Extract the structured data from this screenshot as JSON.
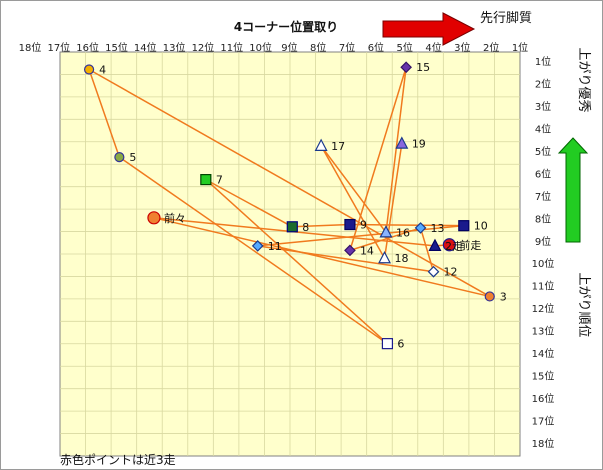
{
  "chart_data": {
    "type": "scatter",
    "title": "4コーナー位置取り",
    "x_ticks": [
      "18位",
      "17位",
      "16位",
      "15位",
      "14位",
      "13位",
      "12位",
      "11位",
      "10位",
      "9位",
      "8位",
      "7位",
      "6位",
      "5位",
      "4位",
      "3位",
      "2位",
      "1位"
    ],
    "y_ticks": [
      "1位",
      "2位",
      "3位",
      "4位",
      "5位",
      "6位",
      "7位",
      "8位",
      "9位",
      "10位",
      "11位",
      "12位",
      "13位",
      "14位",
      "15位",
      "16位",
      "17位",
      "18位"
    ],
    "xlim": [
      18,
      1
    ],
    "ylim": [
      1,
      18
    ],
    "grid": true,
    "arrow_top_label": "先行脚質",
    "arrow_right_up_label": "上がり優秀",
    "arrow_right_down_label": "上がり順位",
    "footnote": "赤色ポイントは近3走",
    "colors": {
      "plot_bg": "#ffffcc",
      "grid": "#d8d8a0",
      "line": "#f07a1e",
      "red_arrow": "#e10000",
      "green_arrow": "#22cc22"
    },
    "points": [
      {
        "label": "4",
        "x": 15.95,
        "y": 1.2,
        "shape": "circle",
        "fill": "#f4b000",
        "stroke": "#333399"
      },
      {
        "label": "5",
        "x": 14.9,
        "y": 5.1,
        "shape": "circle",
        "fill": "#8aaa44",
        "stroke": "#333399"
      },
      {
        "label": "7",
        "x": 11.9,
        "y": 6.1,
        "shape": "square",
        "fill": "#22cc22",
        "stroke": "#004400"
      },
      {
        "label": "前々",
        "x": 13.7,
        "y": 7.8,
        "shape": "circle",
        "fill": "#f08030",
        "stroke": "#cc0000"
      },
      {
        "label": "8",
        "x": 8.9,
        "y": 8.2,
        "shape": "square",
        "fill": "#1d6b2d",
        "stroke": "#000080"
      },
      {
        "label": "9",
        "x": 6.9,
        "y": 8.1,
        "shape": "square",
        "fill": "#1a1a8c",
        "stroke": "#000060"
      },
      {
        "label": "10",
        "x": 2.95,
        "y": 8.15,
        "shape": "square",
        "fill": "#1a1a8c",
        "stroke": "#000060"
      },
      {
        "label": "11",
        "x": 10.1,
        "y": 9.05,
        "shape": "diamond",
        "fill": "#55aaff",
        "stroke": "#1a3a8c"
      },
      {
        "label": "13",
        "x": 4.45,
        "y": 8.25,
        "shape": "diamond",
        "fill": "#55aaff",
        "stroke": "#1a3a8c"
      },
      {
        "label": "16",
        "x": 5.65,
        "y": 8.45,
        "shape": "triangle",
        "fill": "#8ab4ff",
        "stroke": "#1a3a8c"
      },
      {
        "label": "14",
        "x": 6.9,
        "y": 9.25,
        "shape": "diamond",
        "fill": "#6633aa",
        "stroke": "#331166"
      },
      {
        "label": "15",
        "x": 4.95,
        "y": 1.1,
        "shape": "diamond",
        "fill": "#6633aa",
        "stroke": "#331166"
      },
      {
        "label": "17",
        "x": 7.9,
        "y": 4.6,
        "shape": "triangle",
        "fill": "#ffffff",
        "stroke": "#1a3a8c"
      },
      {
        "label": "19",
        "x": 5.1,
        "y": 4.5,
        "shape": "triangle",
        "fill": "#8866dd",
        "stroke": "#1a3a8c"
      },
      {
        "label": "18",
        "x": 5.7,
        "y": 9.6,
        "shape": "triangle",
        "fill": "#ffffff",
        "stroke": "#1a3a8c"
      },
      {
        "label": "2走",
        "x": 3.95,
        "y": 9.05,
        "shape": "triangle",
        "fill": "#1a1a8c",
        "stroke": "#000060"
      },
      {
        "label": "前走",
        "x": 3.45,
        "y": 9.0,
        "shape": "circle",
        "fill": "#dd1111",
        "stroke": "#1a1a8c"
      },
      {
        "label": "12",
        "x": 4.0,
        "y": 10.2,
        "shape": "diamond",
        "fill": "#ffffff",
        "stroke": "#1a3a8c"
      },
      {
        "label": "3",
        "x": 2.05,
        "y": 11.3,
        "shape": "circle",
        "fill": "#f08030",
        "stroke": "#333399"
      },
      {
        "label": "6",
        "x": 5.6,
        "y": 13.4,
        "shape": "square",
        "fill": "#ffffff",
        "stroke": "#1a1a8c"
      }
    ],
    "path": [
      "前走",
      "2走",
      "前々",
      "3",
      "4",
      "5",
      "6",
      "7",
      "8",
      "9",
      "10",
      "11",
      "12",
      "13",
      "14",
      "15",
      "16",
      "17",
      "18",
      "19"
    ]
  }
}
